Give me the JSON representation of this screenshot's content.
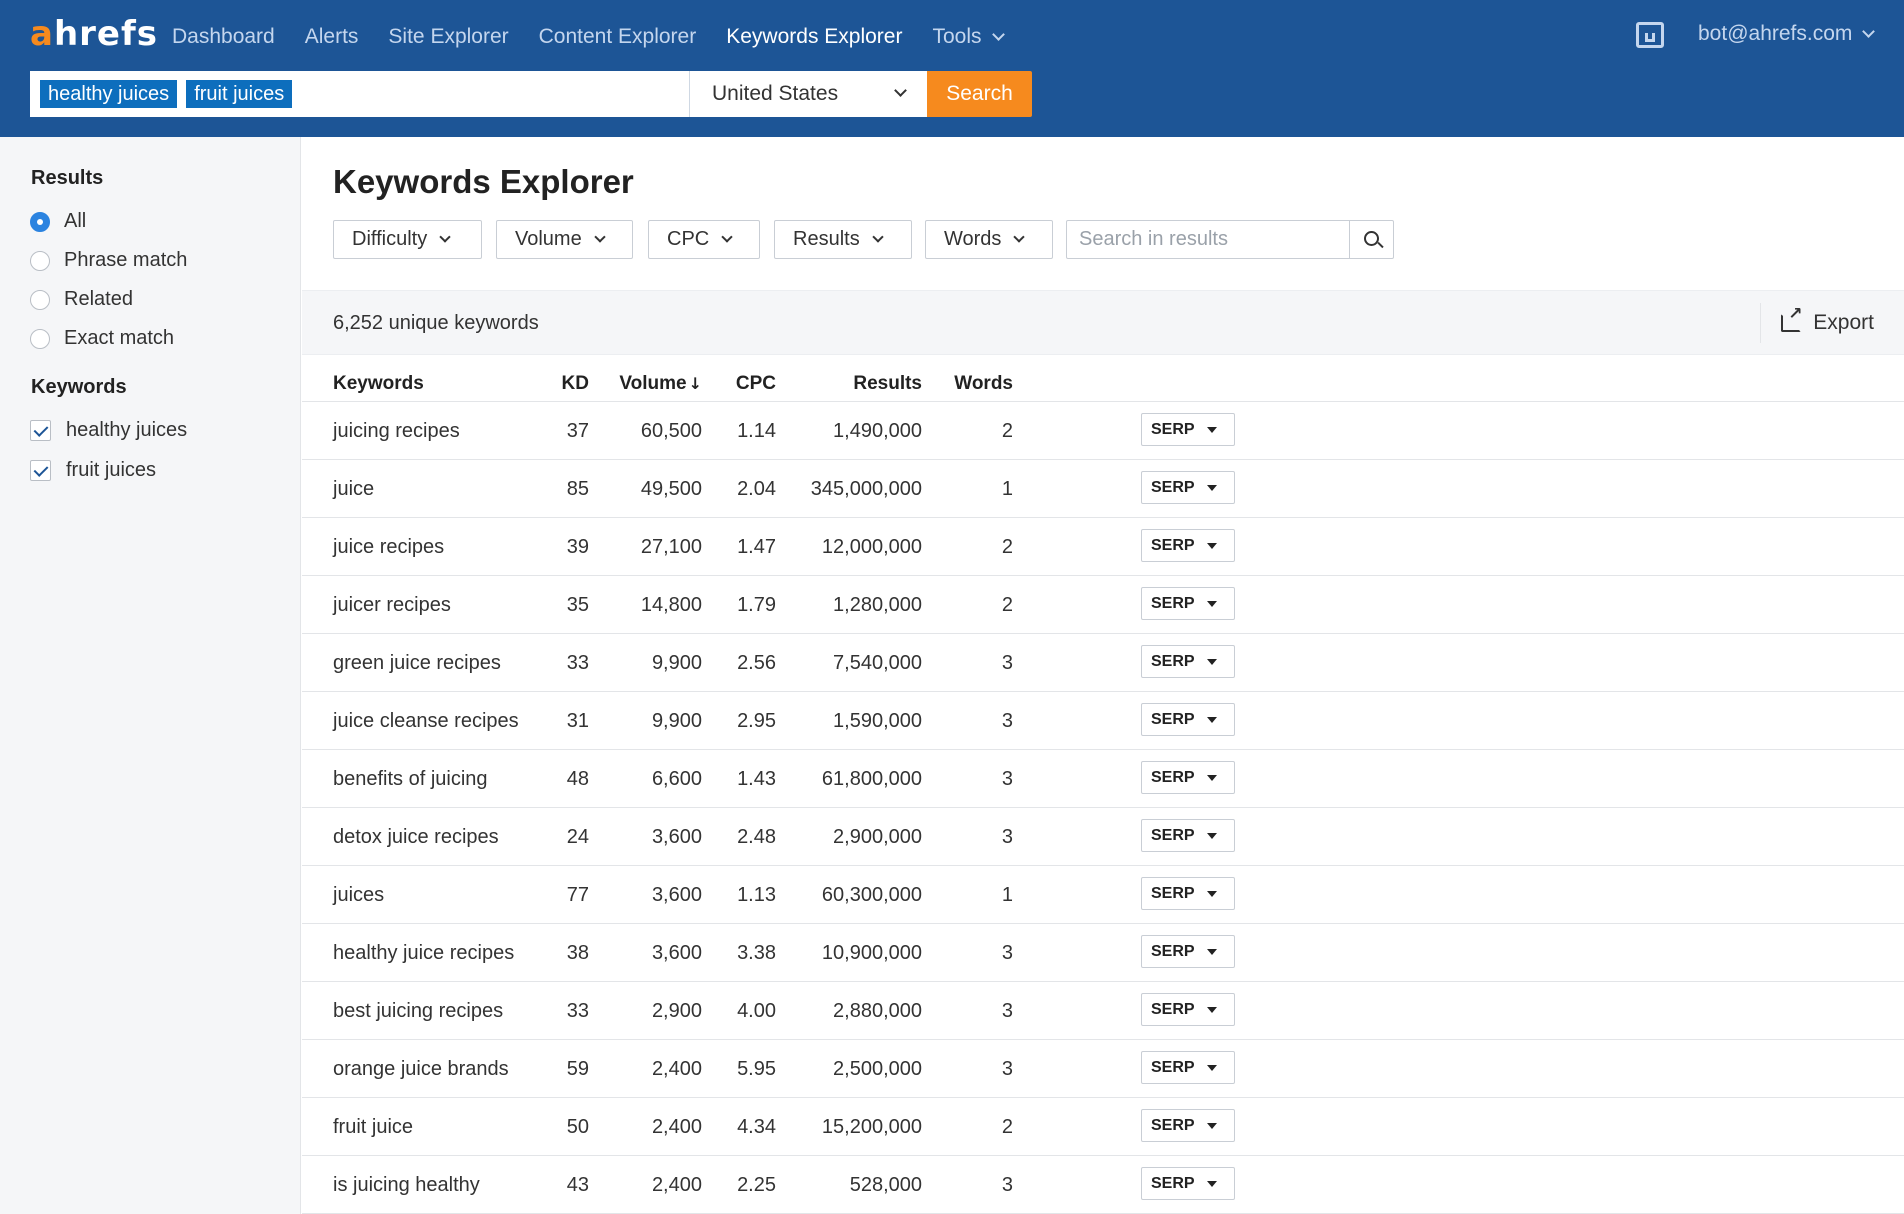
{
  "brand": {
    "logo_a": "a",
    "logo_rest": "hrefs"
  },
  "nav": {
    "items": [
      "Dashboard",
      "Alerts",
      "Site Explorer",
      "Content Explorer",
      "Keywords Explorer",
      "Tools"
    ],
    "active": "Keywords Explorer",
    "account": "bot@ahrefs.com"
  },
  "search": {
    "tags": [
      "healthy juices",
      "fruit juices"
    ],
    "country": "United States",
    "button": "Search"
  },
  "sidebar": {
    "results_title": "Results",
    "results_options": [
      "All",
      "Phrase match",
      "Related",
      "Exact match"
    ],
    "results_selected": "All",
    "keywords_title": "Keywords",
    "keywords": [
      "healthy juices",
      "fruit juices"
    ]
  },
  "main": {
    "title": "Keywords Explorer",
    "filters": [
      "Difficulty",
      "Volume",
      "CPC",
      "Results",
      "Words"
    ],
    "search_placeholder": "Search in results",
    "count": "6,252 unique keywords",
    "export": "Export"
  },
  "table": {
    "headers": {
      "keyword": "Keywords",
      "kd": "KD",
      "volume": "Volume",
      "cpc": "CPC",
      "results": "Results",
      "words": "Words"
    },
    "sort_indicator": "↓",
    "serp_label": "SERP",
    "rows": [
      {
        "keyword": "juicing recipes",
        "kd": "37",
        "volume": "60,500",
        "cpc": "1.14",
        "results": "1,490,000",
        "words": "2"
      },
      {
        "keyword": "juice",
        "kd": "85",
        "volume": "49,500",
        "cpc": "2.04",
        "results": "345,000,000",
        "words": "1"
      },
      {
        "keyword": "juice recipes",
        "kd": "39",
        "volume": "27,100",
        "cpc": "1.47",
        "results": "12,000,000",
        "words": "2"
      },
      {
        "keyword": "juicer recipes",
        "kd": "35",
        "volume": "14,800",
        "cpc": "1.79",
        "results": "1,280,000",
        "words": "2"
      },
      {
        "keyword": "green juice recipes",
        "kd": "33",
        "volume": "9,900",
        "cpc": "2.56",
        "results": "7,540,000",
        "words": "3"
      },
      {
        "keyword": "juice cleanse recipes",
        "kd": "31",
        "volume": "9,900",
        "cpc": "2.95",
        "results": "1,590,000",
        "words": "3"
      },
      {
        "keyword": "benefits of juicing",
        "kd": "48",
        "volume": "6,600",
        "cpc": "1.43",
        "results": "61,800,000",
        "words": "3"
      },
      {
        "keyword": "detox juice recipes",
        "kd": "24",
        "volume": "3,600",
        "cpc": "2.48",
        "results": "2,900,000",
        "words": "3"
      },
      {
        "keyword": "juices",
        "kd": "77",
        "volume": "3,600",
        "cpc": "1.13",
        "results": "60,300,000",
        "words": "1"
      },
      {
        "keyword": "healthy juice recipes",
        "kd": "38",
        "volume": "3,600",
        "cpc": "3.38",
        "results": "10,900,000",
        "words": "3"
      },
      {
        "keyword": "best juicing recipes",
        "kd": "33",
        "volume": "2,900",
        "cpc": "4.00",
        "results": "2,880,000",
        "words": "3"
      },
      {
        "keyword": "orange juice brands",
        "kd": "59",
        "volume": "2,400",
        "cpc": "5.95",
        "results": "2,500,000",
        "words": "3"
      },
      {
        "keyword": "fruit juice",
        "kd": "50",
        "volume": "2,400",
        "cpc": "4.34",
        "results": "15,200,000",
        "words": "2"
      },
      {
        "keyword": "is juicing healthy",
        "kd": "43",
        "volume": "2,400",
        "cpc": "2.25",
        "results": "528,000",
        "words": "3"
      }
    ]
  },
  "colors": {
    "header_bg": "#1d5596",
    "accent_orange": "#f68a1e",
    "tag_blue": "#0d6ebd",
    "radio_blue": "#2b83e0"
  },
  "icons": [
    "chevron-down-icon",
    "inbox-icon",
    "search-icon",
    "export-icon",
    "caret-down-icon",
    "checkmark-icon"
  ]
}
